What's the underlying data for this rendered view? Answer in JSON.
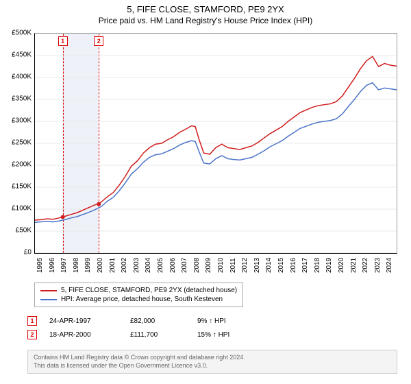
{
  "title": "5, FIFE CLOSE, STAMFORD, PE9 2YX",
  "subtitle": "Price paid vs. HM Land Registry's House Price Index (HPI)",
  "chart": {
    "type": "line",
    "background_color": "#ffffff",
    "grid_color": "#e8e8e8",
    "axis_color": "#000000",
    "title_fontsize": 13,
    "label_fontsize": 10,
    "x": {
      "min": 1995,
      "max": 2025,
      "ticks": [
        1995,
        1996,
        1997,
        1998,
        1999,
        2000,
        2001,
        2002,
        2003,
        2004,
        2005,
        2006,
        2007,
        2008,
        2009,
        2010,
        2011,
        2012,
        2013,
        2014,
        2015,
        2016,
        2017,
        2018,
        2019,
        2020,
        2021,
        2022,
        2023,
        2024
      ]
    },
    "y": {
      "min": 0,
      "max": 500000,
      "ticks": [
        0,
        50000,
        100000,
        150000,
        200000,
        250000,
        300000,
        350000,
        400000,
        450000,
        500000
      ],
      "tick_labels": [
        "£0",
        "£50K",
        "£100K",
        "£150K",
        "£200K",
        "£250K",
        "£300K",
        "£350K",
        "£400K",
        "£450K",
        "£500K"
      ]
    },
    "band": {
      "from": 1997.3,
      "to": 2000.3,
      "color": "#eef2f8"
    },
    "markers": [
      {
        "label": "1",
        "x": 1997.31,
        "y": 82000
      },
      {
        "label": "2",
        "x": 2000.3,
        "y": 111700
      }
    ],
    "series": [
      {
        "name": "price",
        "label": "5, FIFE CLOSE, STAMFORD, PE9 2YX (detached house)",
        "color": "#d01c1c",
        "width": 1.5,
        "points": [
          [
            1995,
            75000
          ],
          [
            1995.5,
            76000
          ],
          [
            1996,
            78000
          ],
          [
            1996.5,
            77000
          ],
          [
            1997,
            80000
          ],
          [
            1997.3,
            82000
          ],
          [
            1998,
            88000
          ],
          [
            1998.5,
            92000
          ],
          [
            1999,
            98000
          ],
          [
            1999.5,
            104000
          ],
          [
            2000,
            110000
          ],
          [
            2000.3,
            111700
          ],
          [
            2001,
            128000
          ],
          [
            2001.5,
            138000
          ],
          [
            2002,
            155000
          ],
          [
            2002.5,
            175000
          ],
          [
            2003,
            198000
          ],
          [
            2003.5,
            210000
          ],
          [
            2004,
            228000
          ],
          [
            2004.5,
            240000
          ],
          [
            2005,
            248000
          ],
          [
            2005.5,
            250000
          ],
          [
            2006,
            258000
          ],
          [
            2006.5,
            265000
          ],
          [
            2007,
            275000
          ],
          [
            2007.5,
            282000
          ],
          [
            2008,
            290000
          ],
          [
            2008.3,
            288000
          ],
          [
            2008.6,
            260000
          ],
          [
            2009,
            228000
          ],
          [
            2009.5,
            225000
          ],
          [
            2010,
            240000
          ],
          [
            2010.5,
            248000
          ],
          [
            2011,
            240000
          ],
          [
            2011.5,
            238000
          ],
          [
            2012,
            236000
          ],
          [
            2012.5,
            240000
          ],
          [
            2013,
            244000
          ],
          [
            2013.5,
            252000
          ],
          [
            2014,
            262000
          ],
          [
            2014.5,
            272000
          ],
          [
            2015,
            280000
          ],
          [
            2015.5,
            288000
          ],
          [
            2016,
            300000
          ],
          [
            2016.5,
            310000
          ],
          [
            2017,
            320000
          ],
          [
            2017.5,
            326000
          ],
          [
            2018,
            332000
          ],
          [
            2018.5,
            336000
          ],
          [
            2019,
            338000
          ],
          [
            2019.5,
            340000
          ],
          [
            2020,
            345000
          ],
          [
            2020.5,
            358000
          ],
          [
            2021,
            378000
          ],
          [
            2021.5,
            398000
          ],
          [
            2022,
            420000
          ],
          [
            2022.5,
            438000
          ],
          [
            2023,
            448000
          ],
          [
            2023.5,
            425000
          ],
          [
            2024,
            432000
          ],
          [
            2024.5,
            428000
          ],
          [
            2025,
            426000
          ]
        ]
      },
      {
        "name": "hpi",
        "label": "HPI: Average price, detached house, South Kesteven",
        "color": "#4a74c9",
        "width": 1.5,
        "points": [
          [
            1995,
            70000
          ],
          [
            1995.5,
            71000
          ],
          [
            1996,
            72000
          ],
          [
            1996.5,
            71000
          ],
          [
            1997,
            73000
          ],
          [
            1997.5,
            76000
          ],
          [
            1998,
            80000
          ],
          [
            1998.5,
            83000
          ],
          [
            1999,
            88000
          ],
          [
            1999.5,
            93000
          ],
          [
            2000,
            99000
          ],
          [
            2000.5,
            106000
          ],
          [
            2001,
            118000
          ],
          [
            2001.5,
            127000
          ],
          [
            2002,
            142000
          ],
          [
            2002.5,
            160000
          ],
          [
            2003,
            180000
          ],
          [
            2003.5,
            192000
          ],
          [
            2004,
            207000
          ],
          [
            2004.5,
            218000
          ],
          [
            2005,
            224000
          ],
          [
            2005.5,
            226000
          ],
          [
            2006,
            232000
          ],
          [
            2006.5,
            238000
          ],
          [
            2007,
            246000
          ],
          [
            2007.5,
            252000
          ],
          [
            2008,
            256000
          ],
          [
            2008.3,
            254000
          ],
          [
            2008.6,
            232000
          ],
          [
            2009,
            205000
          ],
          [
            2009.5,
            203000
          ],
          [
            2010,
            215000
          ],
          [
            2010.5,
            222000
          ],
          [
            2011,
            215000
          ],
          [
            2011.5,
            213000
          ],
          [
            2012,
            212000
          ],
          [
            2012.5,
            215000
          ],
          [
            2013,
            218000
          ],
          [
            2013.5,
            225000
          ],
          [
            2014,
            233000
          ],
          [
            2014.5,
            242000
          ],
          [
            2015,
            249000
          ],
          [
            2015.5,
            256000
          ],
          [
            2016,
            266000
          ],
          [
            2016.5,
            275000
          ],
          [
            2017,
            284000
          ],
          [
            2017.5,
            289000
          ],
          [
            2018,
            294000
          ],
          [
            2018.5,
            298000
          ],
          [
            2019,
            300000
          ],
          [
            2019.5,
            302000
          ],
          [
            2020,
            306000
          ],
          [
            2020.5,
            317000
          ],
          [
            2021,
            334000
          ],
          [
            2021.5,
            350000
          ],
          [
            2022,
            368000
          ],
          [
            2022.5,
            382000
          ],
          [
            2023,
            388000
          ],
          [
            2023.5,
            372000
          ],
          [
            2024,
            376000
          ],
          [
            2024.5,
            374000
          ],
          [
            2025,
            372000
          ]
        ]
      }
    ]
  },
  "sales": [
    {
      "idx": "1",
      "date": "24-APR-1997",
      "price": "£82,000",
      "delta": "9% ↑ HPI"
    },
    {
      "idx": "2",
      "date": "18-APR-2000",
      "price": "£111,700",
      "delta": "15% ↑ HPI"
    }
  ],
  "footer": {
    "l1": "Contains HM Land Registry data © Crown copyright and database right 2024.",
    "l2": "This data is licensed under the Open Government Licence v3.0."
  },
  "legend": {
    "border_color": "#aaaaaa"
  },
  "marker_style": {
    "border_color": "#d01c1c",
    "text_color": "#d01c1c"
  }
}
